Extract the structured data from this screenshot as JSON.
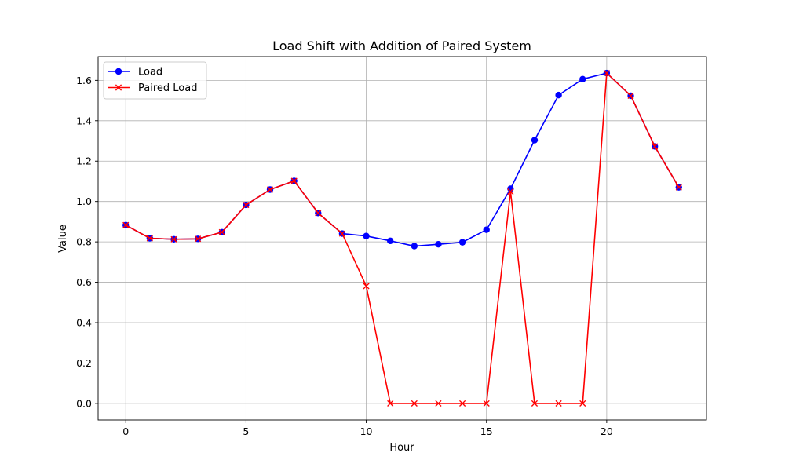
{
  "chart_data": {
    "type": "line",
    "title": "Load Shift with Addition of Paired System",
    "xlabel": "Hour",
    "ylabel": "Value",
    "xlim": [
      -1.15,
      24.15
    ],
    "ylim": [
      -0.082,
      1.718
    ],
    "xticks": [
      0,
      5,
      10,
      15,
      20
    ],
    "xtick_labels": [
      "0",
      "5",
      "10",
      "15",
      "20"
    ],
    "yticks": [
      0.0,
      0.2,
      0.4,
      0.6,
      0.8,
      1.0,
      1.2,
      1.4,
      1.6
    ],
    "ytick_labels": [
      "0.0",
      "0.2",
      "0.4",
      "0.6",
      "0.8",
      "1.0",
      "1.2",
      "1.4",
      "1.6"
    ],
    "grid": true,
    "legend_position": "top-left",
    "x": [
      0,
      1,
      2,
      3,
      4,
      5,
      6,
      7,
      8,
      9,
      10,
      11,
      12,
      13,
      14,
      15,
      16,
      17,
      18,
      19,
      20,
      21,
      22,
      23
    ],
    "series": [
      {
        "name": "Load",
        "color": "#0000ff",
        "marker": "circle",
        "values": [
          0.883,
          0.818,
          0.813,
          0.815,
          0.848,
          0.983,
          1.059,
          1.102,
          0.943,
          0.841,
          0.829,
          0.805,
          0.779,
          0.788,
          0.798,
          0.86,
          1.063,
          1.304,
          1.527,
          1.606,
          1.636,
          1.524,
          1.273,
          1.07
        ]
      },
      {
        "name": "Paired Load",
        "color": "#ff0000",
        "marker": "x",
        "values": [
          0.883,
          0.818,
          0.813,
          0.815,
          0.848,
          0.983,
          1.059,
          1.102,
          0.943,
          0.841,
          0.581,
          0.0,
          0.0,
          0.0,
          0.0,
          0.0,
          1.049,
          0.0,
          0.0,
          0.0,
          1.636,
          1.524,
          1.273,
          1.07
        ]
      }
    ]
  }
}
